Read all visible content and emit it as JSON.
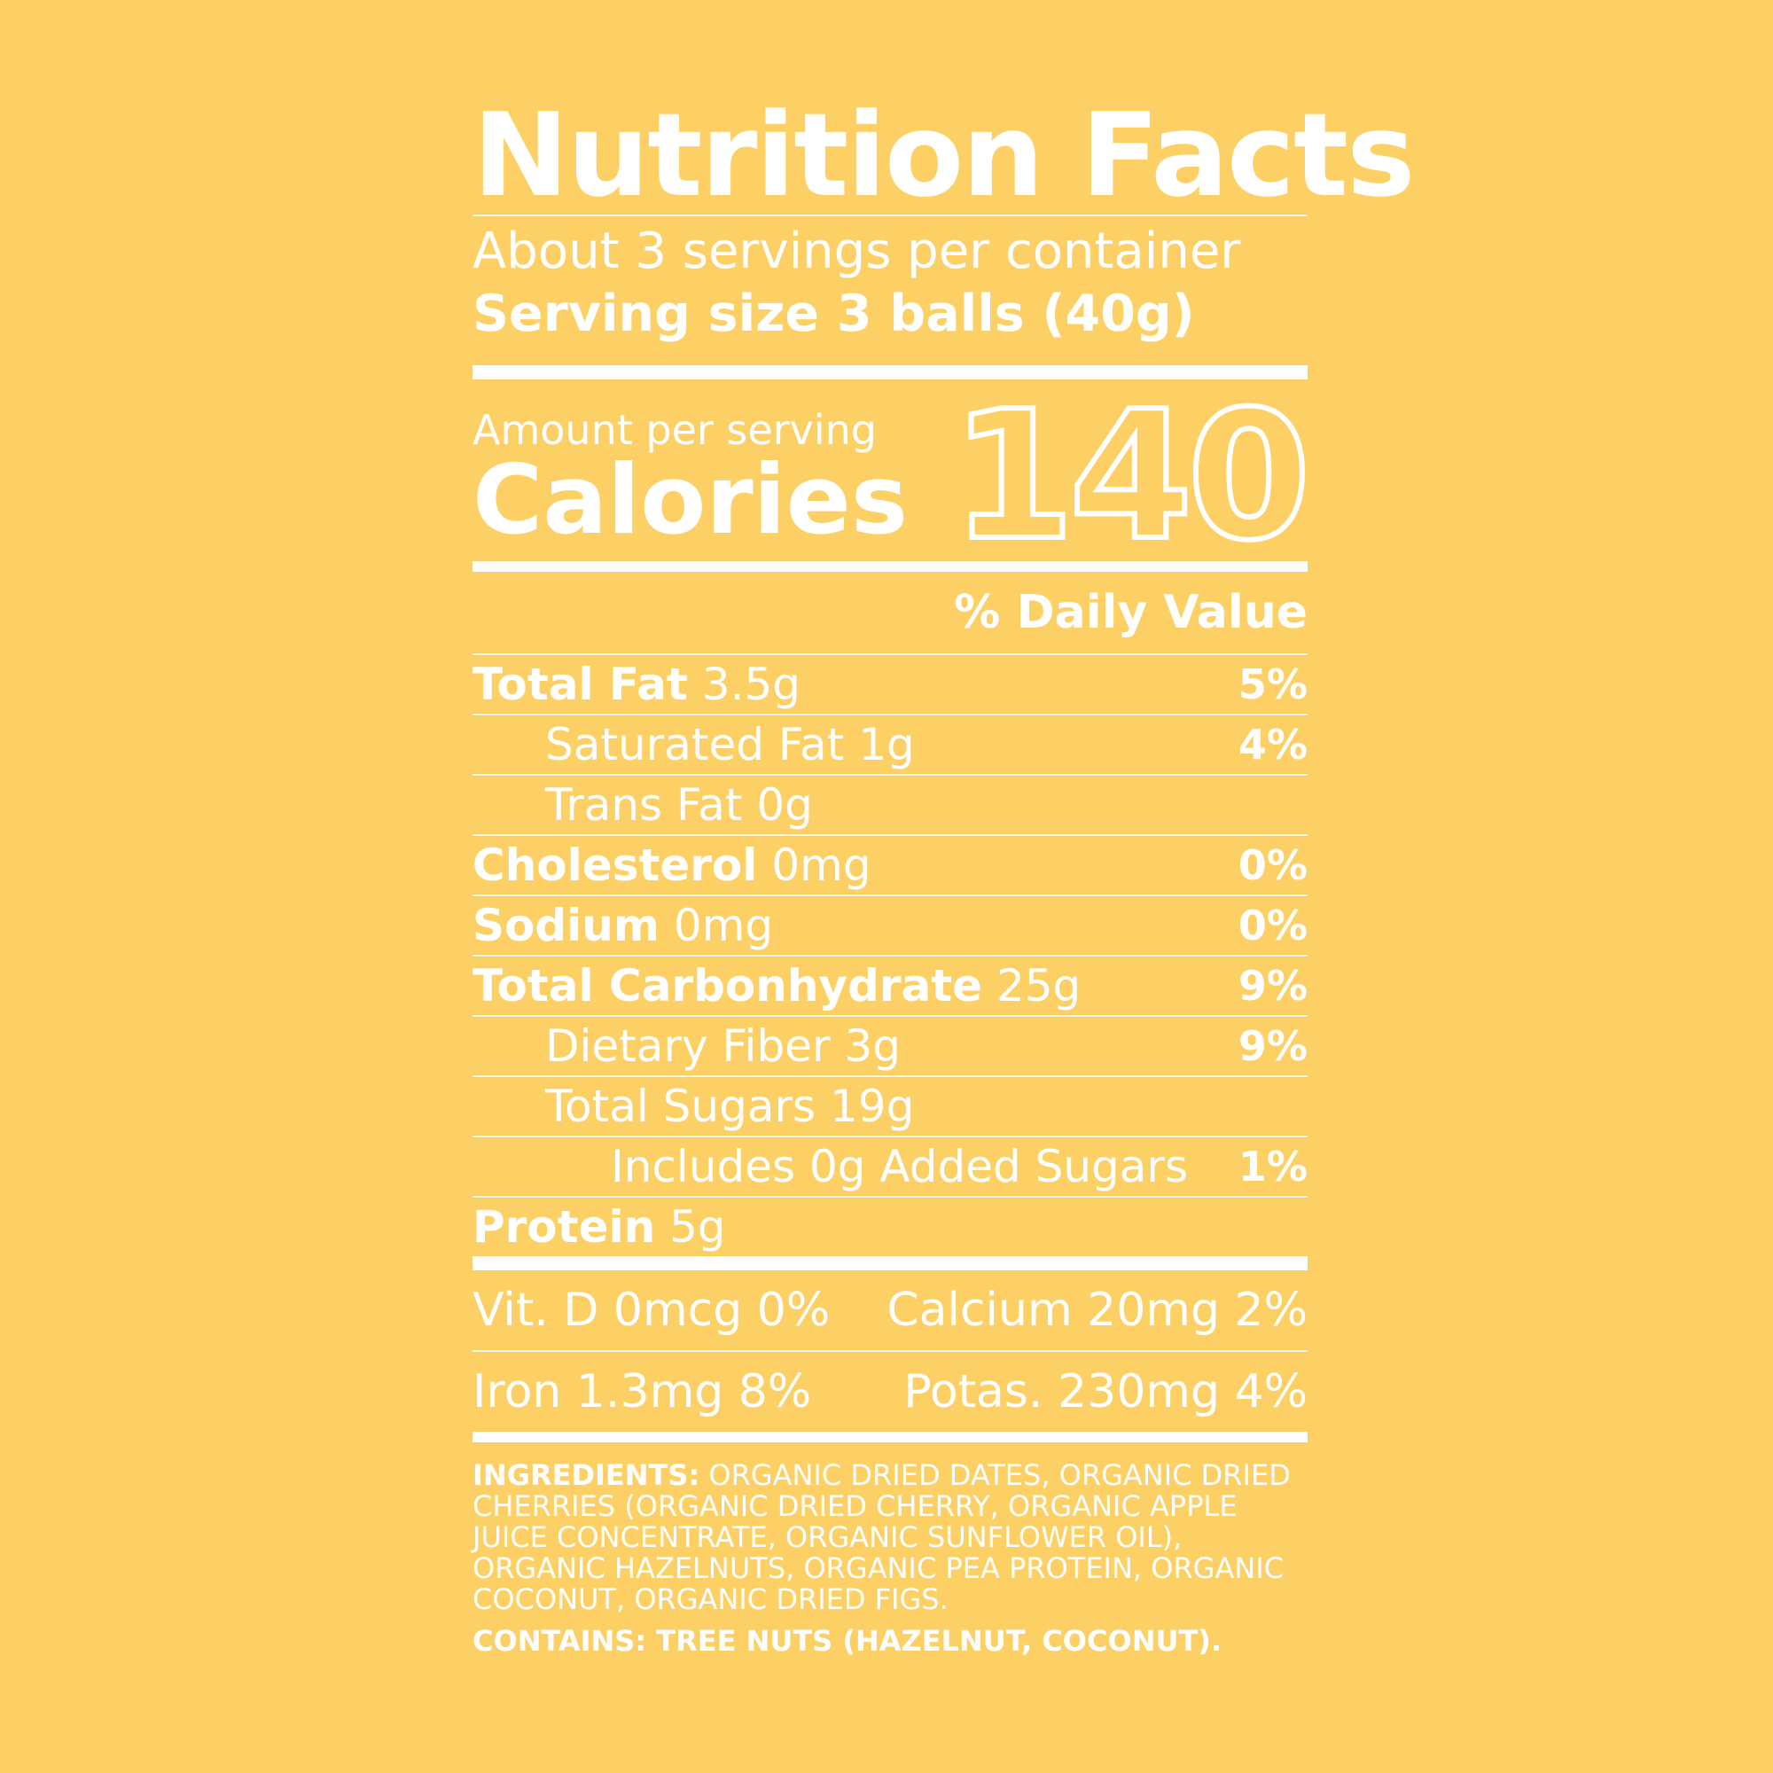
{
  "colors": {
    "background": "#FDD066",
    "text": "#FFFFFF"
  },
  "title": "Nutrition Facts",
  "servings_per_container": "About 3 servings per container",
  "serving_size": "Serving size 3 balls (40g)",
  "amount_per_serving": "Amount per serving",
  "calories_label": "Calories",
  "calories_value": "140",
  "daily_value_header": "% Daily Value",
  "nutrients": [
    {
      "name": "Total Fat",
      "amount": "3.5g",
      "dv": "5%"
    },
    {
      "name": "Saturated Fat",
      "amount": "1g",
      "dv": "4%"
    },
    {
      "name": "Trans Fat",
      "amount": "0g",
      "dv": ""
    },
    {
      "name": "Cholesterol",
      "amount": "0mg",
      "dv": "0%"
    },
    {
      "name": "Sodium",
      "amount": "0mg",
      "dv": "0%"
    },
    {
      "name": "Total Carbonhydrate",
      "amount": "25g",
      "dv": "9%"
    },
    {
      "name": "Dietary Fiber",
      "amount": "3g",
      "dv": "9%"
    },
    {
      "name": "Total Sugars",
      "amount": "19g",
      "dv": ""
    },
    {
      "name": "Includes 0g Added Sugars",
      "amount": "",
      "dv": "1%"
    },
    {
      "name": "Protein",
      "amount": "5g",
      "dv": ""
    }
  ],
  "vitamins": {
    "vit_d": "Vit. D 0mcg 0%",
    "calcium": "Calcium 20mg 2%",
    "iron": "Iron 1.3mg 8%",
    "potassium": "Potas. 230mg 4%"
  },
  "ingredients_label": "INGREDIENTS:",
  "ingredients_text": "ORGANIC DRIED DATES, ORGANIC DRIED CHERRIES (ORGANIC DRIED CHERRY, ORGANIC APPLE JUICE CONCENTRATE, ORGANIC SUNFLOWER OIL), ORGANIC HAZELNUTS, ORGANIC PEA PROTEIN, ORGANIC COCONUT, ORGANIC DRIED FIGS.",
  "contains": "CONTAINS: TREE NUTS (HAZELNUT, COCONUT)."
}
